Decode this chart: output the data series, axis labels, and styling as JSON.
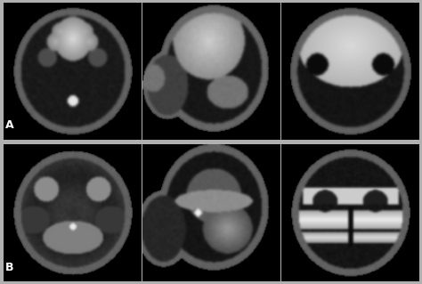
{
  "fig_width": 4.74,
  "fig_height": 3.19,
  "dpi": 100,
  "background_color": "#b0b0b0",
  "panel_bg_color": "#000000",
  "label_A": "A",
  "label_B": "B",
  "label_color": "#ffffff",
  "label_fontsize": 9,
  "label_fontweight": "bold",
  "outer_border_color": "#888888",
  "row_sep_color": "#aaaaaa",
  "row_sep_thickness": 0.018
}
